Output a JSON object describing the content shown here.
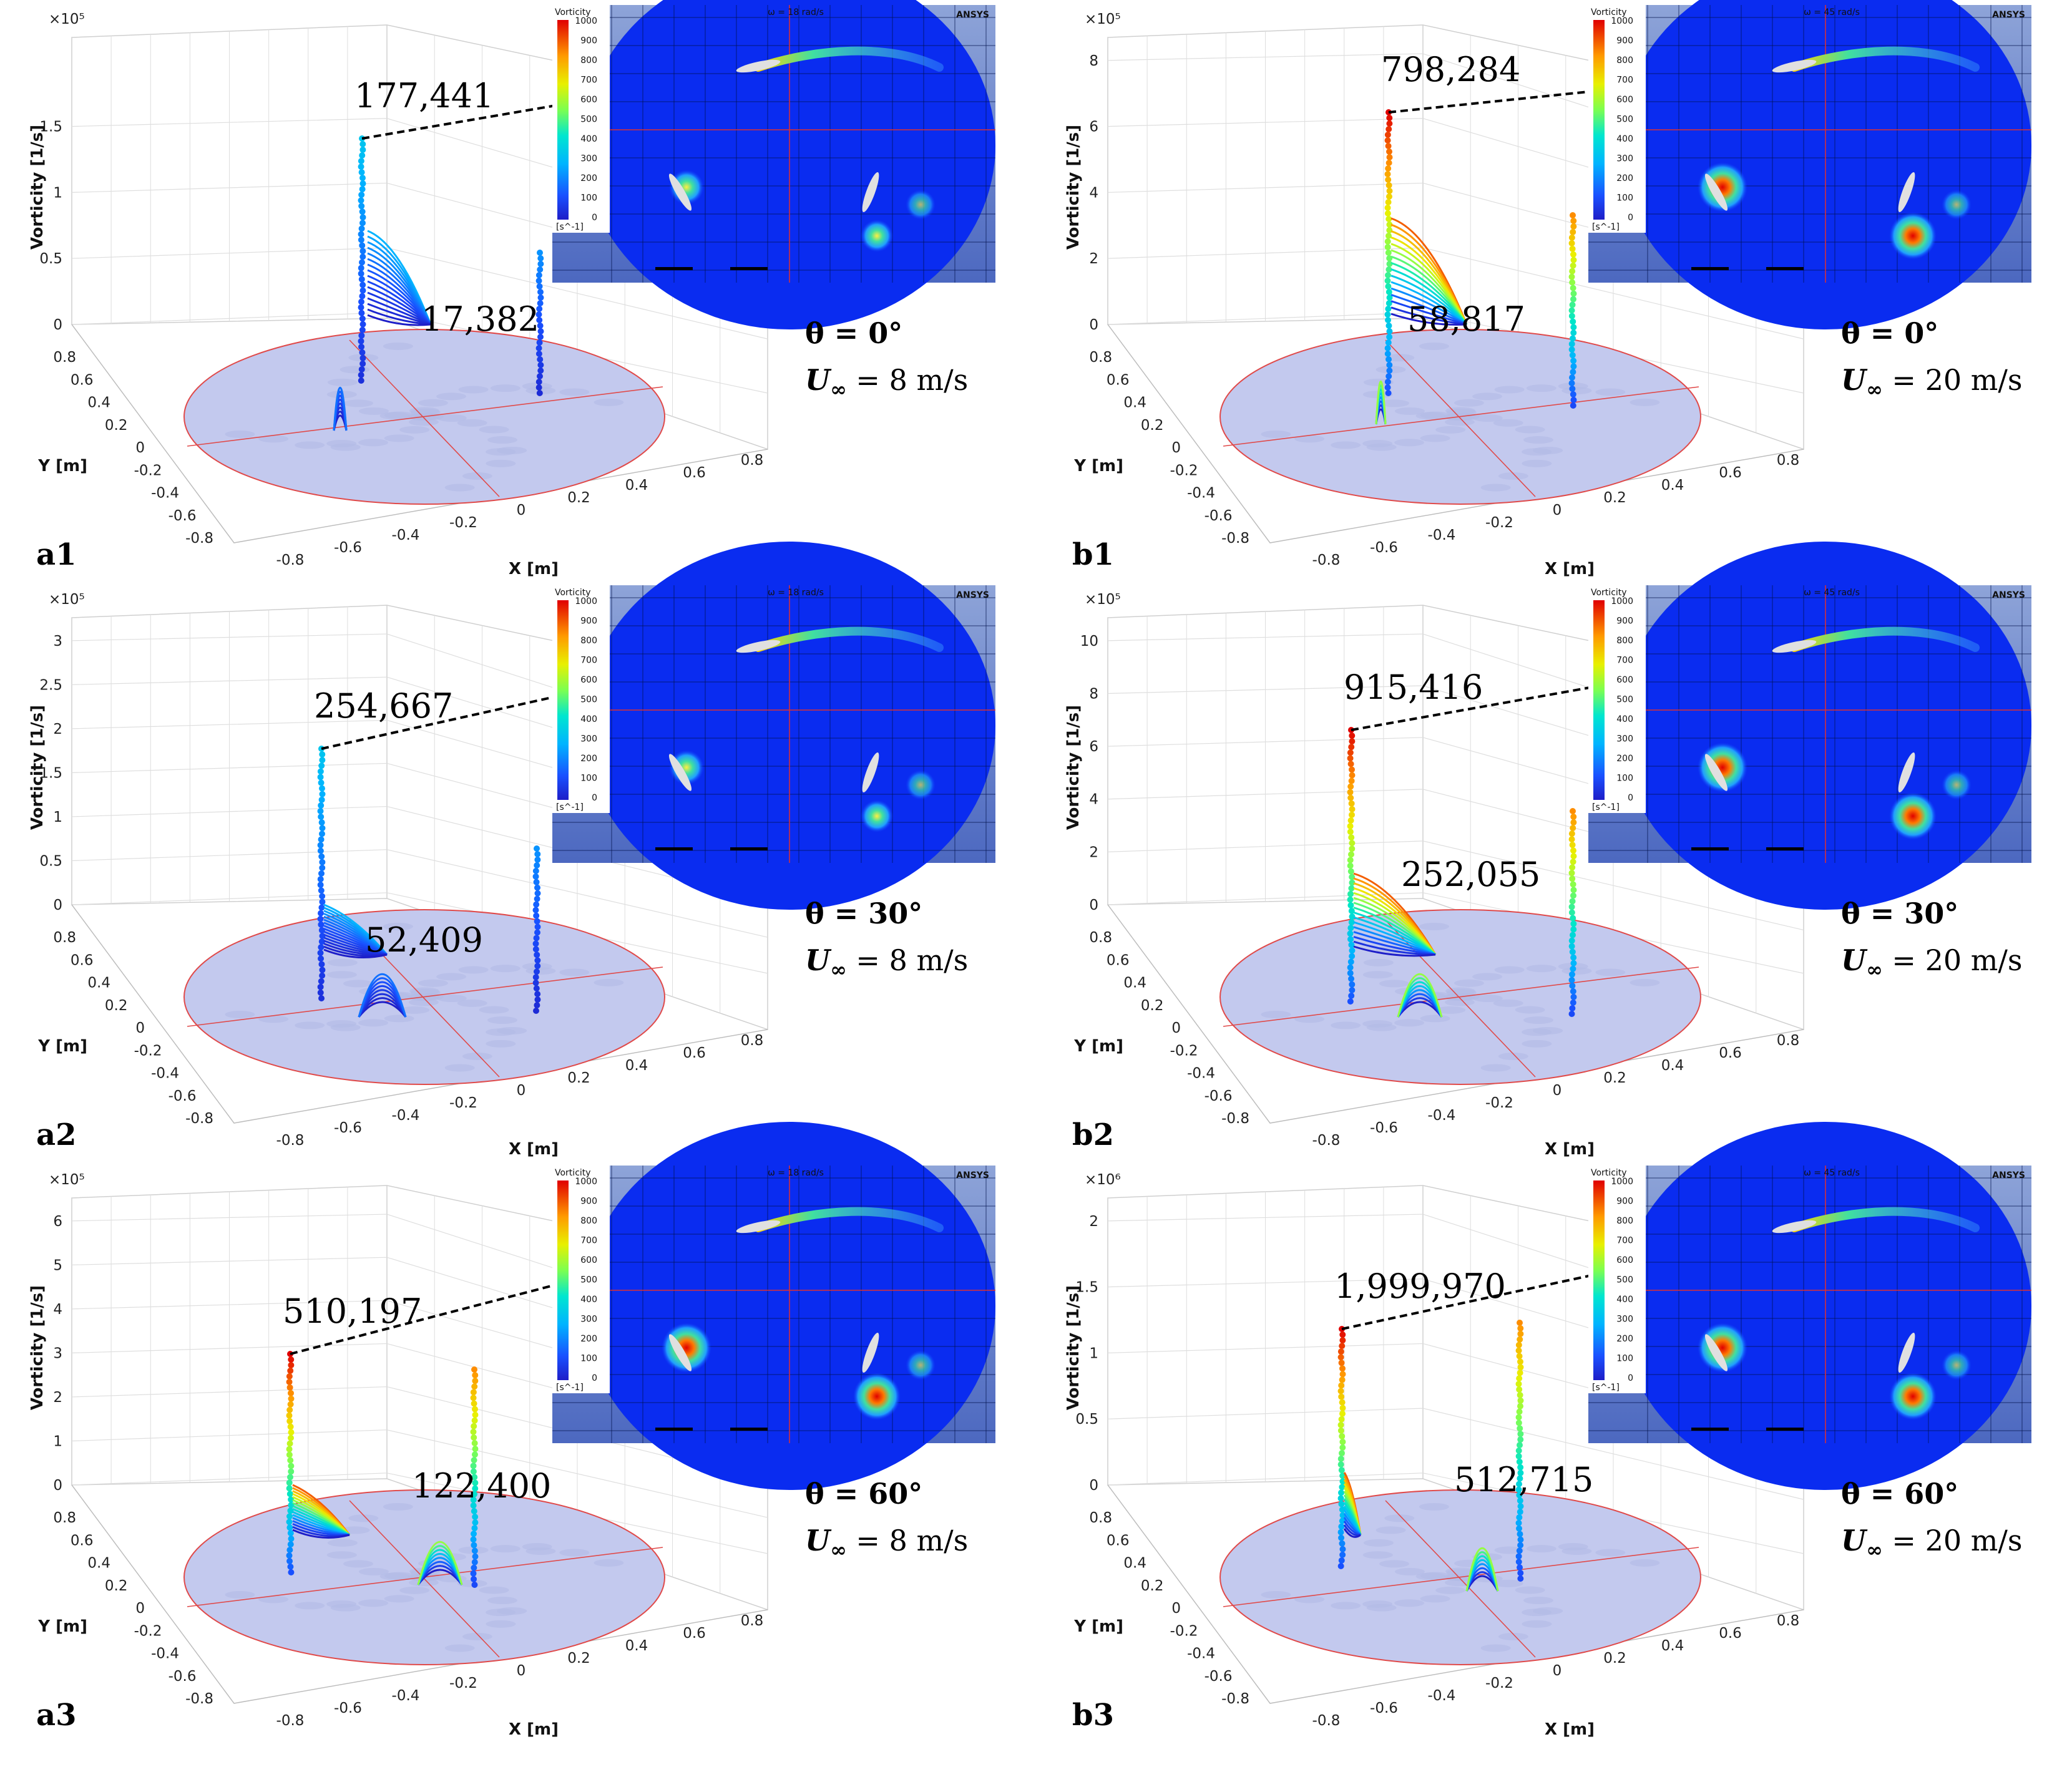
{
  "colors": {
    "disk_fill": "#c3c9ee",
    "disk_edge": "#e04a4a",
    "inset_bg": "#0a2cf0",
    "inset_frame": "#5d79c9",
    "grid": "#dedede"
  },
  "chart_data": [
    {
      "id": "a1",
      "type": "scatter3d",
      "panel_label": "a1",
      "exponent_label": "×10⁵",
      "z_ticks": [
        "0",
        "0.5",
        "1",
        "1.5"
      ],
      "zlim": [
        0,
        2.0
      ],
      "xlim": [
        -0.8,
        0.8
      ],
      "ylim": [
        -0.8,
        0.8
      ],
      "xlabel": "X [m]",
      "ylabel": "Y [m]",
      "zlabel": "Vorticity  [1/s]",
      "x_ticks": [
        "-0.8",
        "-0.6",
        "-0.4",
        "-0.2",
        "0",
        "0.2",
        "0.4",
        "0.6",
        "0.8"
      ],
      "y_ticks": [
        "0.8",
        "0.6",
        "0.4",
        "0.2",
        "0",
        "-0.2",
        "-0.4",
        "-0.6",
        "-0.8"
      ],
      "peak_annotation": "177,441",
      "peak_value": 177441,
      "secondary_annotation": "17,382",
      "secondary_value": 17382,
      "theta_label": "θ = 0°",
      "speed_value": " = 8 m/s",
      "inset": {
        "title": "ω = 18 rad/s",
        "colorbar_title": "Vorticity",
        "unit": "[s^-1]",
        "brand": "ANSYS",
        "ticks": [
          "1000",
          "900",
          "800",
          "700",
          "600",
          "500",
          "400",
          "300",
          "200",
          "100",
          "0"
        ]
      }
    },
    {
      "id": "b1",
      "type": "scatter3d",
      "panel_label": "b1",
      "exponent_label": "×10⁵",
      "z_ticks": [
        "0",
        "2",
        "4",
        "6",
        "8"
      ],
      "zlim": [
        0,
        8
      ],
      "xlim": [
        -0.8,
        0.8
      ],
      "ylim": [
        -0.8,
        0.8
      ],
      "xlabel": "X [m]",
      "ylabel": "Y [m]",
      "zlabel": "Vorticity  [1/s]",
      "x_ticks": [
        "-0.8",
        "-0.6",
        "-0.4",
        "-0.2",
        "0",
        "0.2",
        "0.4",
        "0.6",
        "0.8"
      ],
      "y_ticks": [
        "0.8",
        "0.6",
        "0.4",
        "0.2",
        "0",
        "-0.2",
        "-0.4",
        "-0.6",
        "-0.8"
      ],
      "peak_annotation": "798,284",
      "peak_value": 798284,
      "secondary_annotation": "58,817",
      "secondary_value": 58817,
      "theta_label": "θ = 0°",
      "speed_value": " = 20 m/s",
      "inset": {
        "title": "ω = 45 rad/s",
        "colorbar_title": "Vorticity",
        "unit": "[s^-1]",
        "brand": "ANSYS",
        "ticks": [
          "1000",
          "900",
          "800",
          "700",
          "600",
          "500",
          "400",
          "300",
          "200",
          "100",
          "0"
        ]
      }
    },
    {
      "id": "a2",
      "type": "scatter3d",
      "panel_label": "a2",
      "exponent_label": "×10⁵",
      "z_ticks": [
        "0",
        "0.5",
        "1",
        "1.5",
        "2",
        "2.5",
        "3"
      ],
      "zlim": [
        0,
        3
      ],
      "xlim": [
        -0.8,
        0.8
      ],
      "ylim": [
        -0.8,
        0.8
      ],
      "xlabel": "X [m]",
      "ylabel": "Y [m]",
      "zlabel": "Vorticity  [1/s]",
      "x_ticks": [
        "-0.8",
        "-0.6",
        "-0.4",
        "-0.2",
        "0",
        "0.2",
        "0.4",
        "0.6",
        "0.8"
      ],
      "y_ticks": [
        "0.8",
        "0.6",
        "0.4",
        "0.2",
        "0",
        "-0.2",
        "-0.4",
        "-0.6",
        "-0.8"
      ],
      "peak_annotation": "254,667",
      "peak_value": 254667,
      "secondary_annotation": "52,409",
      "secondary_value": 52409,
      "theta_label": "θ = 30°",
      "speed_value": " = 8 m/s",
      "inset": {
        "title": "ω = 18 rad/s",
        "colorbar_title": "Vorticity",
        "unit": "[s^-1]",
        "brand": "ANSYS",
        "ticks": [
          "1000",
          "900",
          "800",
          "700",
          "600",
          "500",
          "400",
          "300",
          "200",
          "100",
          "0"
        ]
      }
    },
    {
      "id": "b2",
      "type": "scatter3d",
      "panel_label": "b2",
      "exponent_label": "×10⁵",
      "z_ticks": [
        "0",
        "2",
        "4",
        "6",
        "8",
        "10"
      ],
      "zlim": [
        0,
        10
      ],
      "xlim": [
        -0.8,
        0.8
      ],
      "ylim": [
        -0.8,
        0.8
      ],
      "xlabel": "X [m]",
      "ylabel": "Y [m]",
      "zlabel": "Vorticity  [1/s]",
      "x_ticks": [
        "-0.8",
        "-0.6",
        "-0.4",
        "-0.2",
        "0",
        "0.2",
        "0.4",
        "0.6",
        "0.8"
      ],
      "y_ticks": [
        "0.8",
        "0.6",
        "0.4",
        "0.2",
        "0",
        "-0.2",
        "-0.4",
        "-0.6",
        "-0.8"
      ],
      "peak_annotation": "915,416",
      "peak_value": 915416,
      "secondary_annotation": "252,055",
      "secondary_value": 252055,
      "theta_label": "θ = 30°",
      "speed_value": " = 20 m/s",
      "inset": {
        "title": "ω = 45 rad/s",
        "colorbar_title": "Vorticity",
        "unit": "[s^-1]",
        "brand": "ANSYS",
        "ticks": [
          "1000",
          "900",
          "800",
          "700",
          "600",
          "500",
          "400",
          "300",
          "200",
          "100",
          "0"
        ]
      }
    },
    {
      "id": "a3",
      "type": "scatter3d",
      "panel_label": "a3",
      "exponent_label": "×10⁵",
      "z_ticks": [
        "0",
        "1",
        "2",
        "3",
        "4",
        "5",
        "6"
      ],
      "zlim": [
        0,
        6
      ],
      "xlim": [
        -0.8,
        0.8
      ],
      "ylim": [
        -0.8,
        0.8
      ],
      "xlabel": "X [m]",
      "ylabel": "Y [m]",
      "zlabel": "Vorticity  [1/s]",
      "x_ticks": [
        "-0.8",
        "-0.6",
        "-0.4",
        "-0.2",
        "0",
        "0.2",
        "0.4",
        "0.6",
        "0.8"
      ],
      "y_ticks": [
        "0.8",
        "0.6",
        "0.4",
        "0.2",
        "0",
        "-0.2",
        "-0.4",
        "-0.6",
        "-0.8"
      ],
      "peak_annotation": "510,197",
      "peak_value": 510197,
      "secondary_annotation": "122,400",
      "secondary_value": 122400,
      "theta_label": "θ = 60°",
      "speed_value": " = 8 m/s",
      "inset": {
        "title": "ω = 18 rad/s",
        "colorbar_title": "Vorticity",
        "unit": "[s^-1]",
        "brand": "ANSYS",
        "ticks": [
          "1000",
          "900",
          "800",
          "700",
          "600",
          "500",
          "400",
          "300",
          "200",
          "100",
          "0"
        ]
      }
    },
    {
      "id": "b3",
      "type": "scatter3d",
      "panel_label": "b3",
      "exponent_label": "×10⁶",
      "z_ticks": [
        "0",
        "0.5",
        "1",
        "1.5",
        "2"
      ],
      "zlim": [
        0,
        2
      ],
      "xlim": [
        -0.8,
        0.8
      ],
      "ylim": [
        -0.8,
        0.8
      ],
      "xlabel": "X [m]",
      "ylabel": "Y [m]",
      "zlabel": "Vorticity  [1/s]",
      "x_ticks": [
        "-0.8",
        "-0.6",
        "-0.4",
        "-0.2",
        "0",
        "0.2",
        "0.4",
        "0.6",
        "0.8"
      ],
      "y_ticks": [
        "0.8",
        "0.6",
        "0.4",
        "0.2",
        "0",
        "-0.2",
        "-0.4",
        "-0.6",
        "-0.8"
      ],
      "peak_annotation": "1,999,970",
      "peak_value": 1999970,
      "secondary_annotation": "512,715",
      "secondary_value": 512715,
      "theta_label": "θ = 60°",
      "speed_value": " = 20 m/s",
      "inset": {
        "title": "ω = 45 rad/s",
        "colorbar_title": "Vorticity",
        "unit": "[s^-1]",
        "brand": "ANSYS",
        "ticks": [
          "1000",
          "900",
          "800",
          "700",
          "600",
          "500",
          "400",
          "300",
          "200",
          "100",
          "0"
        ]
      }
    }
  ]
}
